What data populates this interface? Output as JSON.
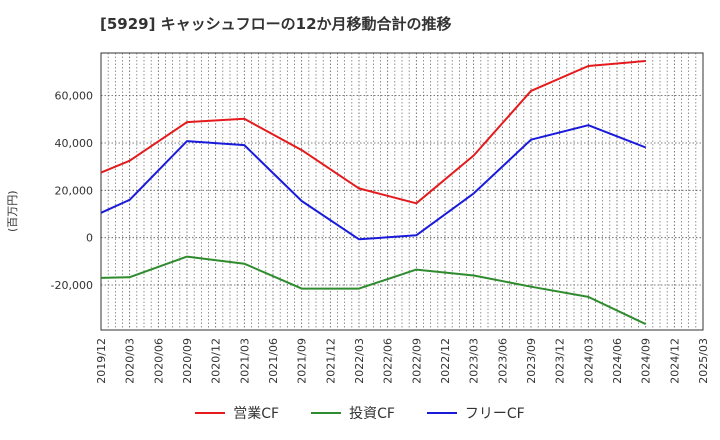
{
  "chart_data": {
    "type": "line",
    "title": "[5929]  キャッシュフローの12か月移動合計の推移",
    "ylabel": "(百万円)",
    "xlabel": "",
    "ylim": [
      -39000,
      78000
    ],
    "yticks": [
      -20000,
      0,
      20000,
      40000,
      60000
    ],
    "ytick_labels": [
      "-20,000",
      "0",
      "20,000",
      "40,000",
      "60,000"
    ],
    "categories": [
      "2019/12",
      "2020/03",
      "2020/06",
      "2020/09",
      "2020/12",
      "2021/03",
      "2021/06",
      "2021/09",
      "2021/12",
      "2022/03",
      "2022/06",
      "2022/09",
      "2022/12",
      "2023/03",
      "2023/06",
      "2023/09",
      "2023/12",
      "2024/03",
      "2024/06",
      "2024/09",
      "2024/12",
      "2025/03"
    ],
    "grid": true,
    "legend_position": "bottom",
    "series": [
      {
        "name": "営業CF",
        "color": "#e41a1c",
        "values": [
          27500,
          32500,
          null,
          48800,
          null,
          50200,
          null,
          37000,
          null,
          20800,
          null,
          14500,
          null,
          34700,
          null,
          62000,
          null,
          72500,
          null,
          74600,
          null,
          null
        ]
      },
      {
        "name": "投資CF",
        "color": "#2e8b2e",
        "values": [
          -17000,
          -16700,
          null,
          -8000,
          null,
          -11000,
          null,
          -21500,
          null,
          -21500,
          null,
          -13500,
          null,
          -16000,
          null,
          -20700,
          null,
          -25000,
          null,
          -36500,
          null,
          null
        ]
      },
      {
        "name": "フリーCF",
        "color": "#1a1adb",
        "values": [
          10500,
          16000,
          null,
          40800,
          null,
          39100,
          null,
          15500,
          null,
          -700,
          null,
          1000,
          null,
          18700,
          null,
          41400,
          null,
          47500,
          null,
          38100,
          null,
          null
        ]
      }
    ]
  }
}
